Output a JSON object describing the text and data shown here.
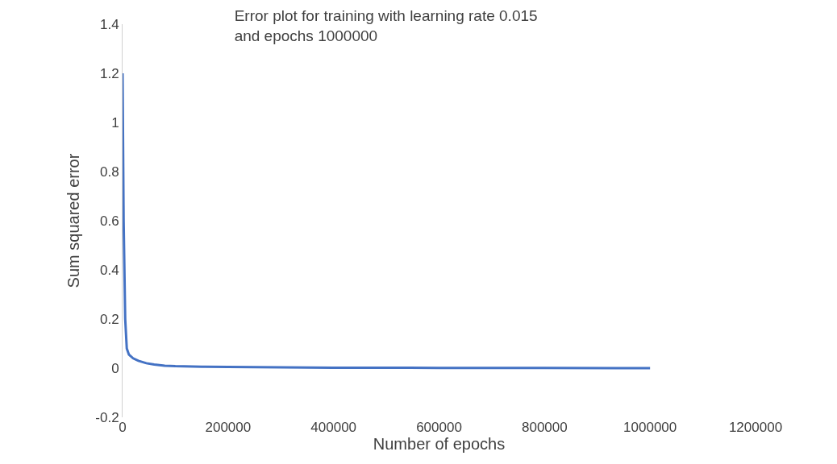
{
  "chart_data": {
    "type": "line",
    "title": "Error plot for training with learning rate 0.015 and epochs 1000000",
    "xlabel": "Number of epochs",
    "ylabel": "Sum squared error",
    "x": [
      0,
      2000,
      5000,
      8000,
      12000,
      20000,
      30000,
      45000,
      60000,
      80000,
      100000,
      150000,
      200000,
      300000,
      400000,
      600000,
      800000,
      1000000
    ],
    "series": [
      {
        "color": "#4472c4",
        "values": [
          1.2,
          0.6,
          0.2,
          0.08,
          0.055,
          0.04,
          0.03,
          0.02,
          0.015,
          0.01,
          0.008,
          0.006,
          0.005,
          0.003,
          0.002,
          0.001,
          0.001,
          0.0
        ]
      }
    ],
    "xlim": [
      0,
      1200000
    ],
    "xticks": [
      0,
      200000,
      400000,
      600000,
      800000,
      1000000,
      1200000
    ],
    "ylim": [
      -0.2,
      1.4
    ],
    "yticks": [
      -0.2,
      0,
      0.2,
      0.4,
      0.6,
      0.8,
      1,
      1.2,
      1.4
    ],
    "marker": "none",
    "line_style": "solid"
  }
}
